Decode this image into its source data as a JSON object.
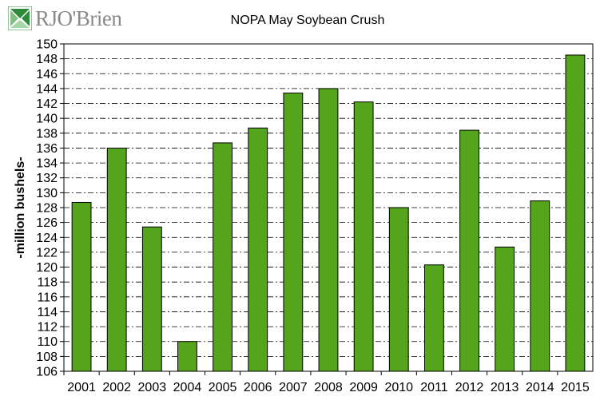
{
  "logo": {
    "text": "RJO'Brien",
    "colors": {
      "green": "#2e8b3a",
      "gray": "#8a8a8a"
    }
  },
  "chart_data": {
    "type": "bar",
    "title": "NOPA May Soybean Crush",
    "xlabel": "",
    "ylabel": "-million bushels-",
    "ylim": [
      106,
      150
    ],
    "ytick_step": 2,
    "grid": true,
    "legend": "none",
    "bar_color": "#55a51c",
    "categories": [
      "2001",
      "2002",
      "2003",
      "2004",
      "2005",
      "2006",
      "2007",
      "2008",
      "2009",
      "2010",
      "2011",
      "2012",
      "2013",
      "2014",
      "2015"
    ],
    "values": [
      128.7,
      136.0,
      125.4,
      110.0,
      136.7,
      138.7,
      143.4,
      144.0,
      142.2,
      128.0,
      120.3,
      138.4,
      122.7,
      128.9,
      148.5
    ]
  }
}
